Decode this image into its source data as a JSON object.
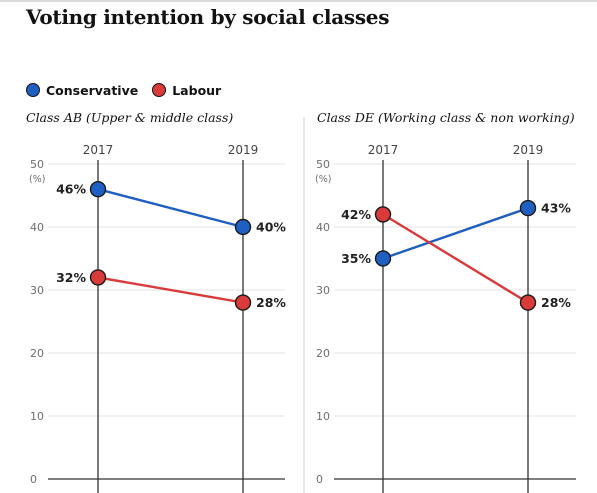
{
  "title": "Voting intention by social classes",
  "legend": [
    {
      "label": "Conservative",
      "color": "#1f5fc2"
    },
    {
      "label": "Labour",
      "color": "#d93a3a"
    }
  ],
  "chart_data": [
    {
      "type": "line",
      "title": "Class AB (Upper & middle class)",
      "x": [
        "2017",
        "2019"
      ],
      "ylim": [
        0,
        50
      ],
      "yticks": [
        0,
        10,
        20,
        30,
        40,
        50
      ],
      "yunit": "(%)",
      "series": [
        {
          "name": "Conservative",
          "color": "#1f5fc2",
          "values": [
            46,
            40
          ],
          "labels": [
            "46%",
            "40%"
          ]
        },
        {
          "name": "Labour",
          "color": "#d93a3a",
          "values": [
            32,
            28
          ],
          "labels": [
            "32%",
            "28%"
          ]
        }
      ]
    },
    {
      "type": "line",
      "title": "Class DE (Working class & non working)",
      "x": [
        "2017",
        "2019"
      ],
      "ylim": [
        0,
        50
      ],
      "yticks": [
        0,
        10,
        20,
        30,
        40,
        50
      ],
      "yunit": "(%)",
      "series": [
        {
          "name": "Conservative",
          "color": "#1f5fc2",
          "values": [
            35,
            43
          ],
          "labels": [
            "35%",
            "43%"
          ]
        },
        {
          "name": "Labour",
          "color": "#d93a3a",
          "values": [
            42,
            28
          ],
          "labels": [
            "42%",
            "28%"
          ]
        }
      ]
    }
  ]
}
